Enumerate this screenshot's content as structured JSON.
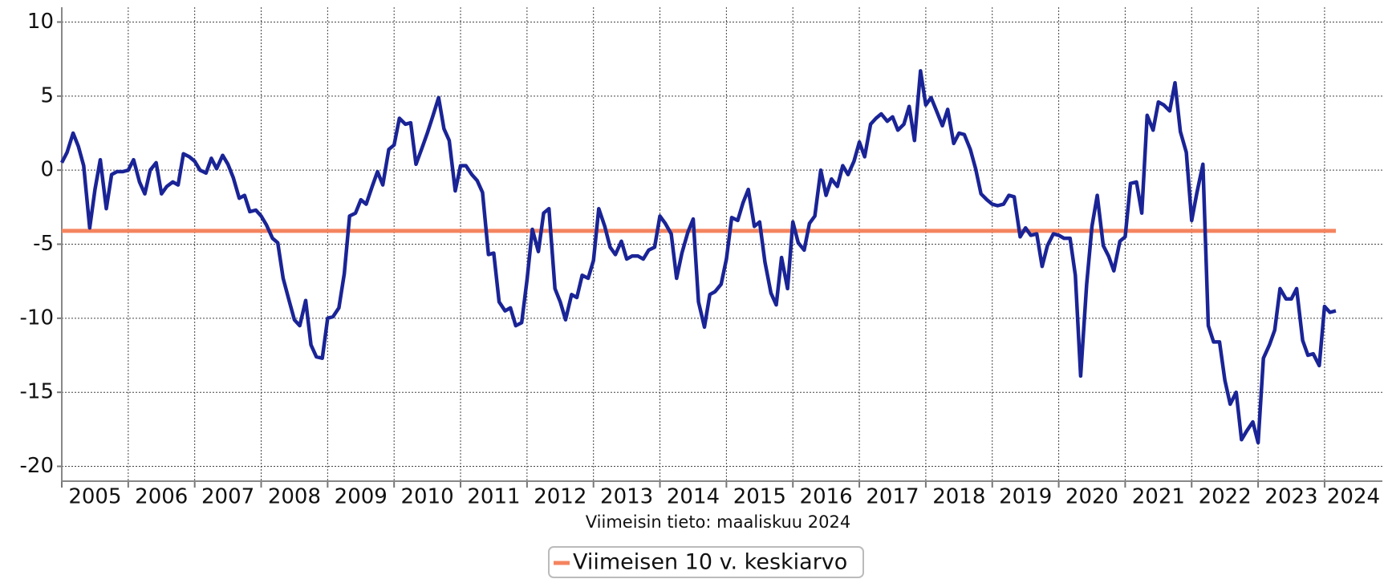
{
  "chart_data": {
    "type": "line",
    "note": "Viimeisin tieto: maaliskuu 2024",
    "x": [
      2005,
      2005.08,
      2005.17,
      2005.25,
      2005.33,
      2005.42,
      2005.5,
      2005.58,
      2005.67,
      2005.75,
      2005.83,
      2005.92,
      2006,
      2006.08,
      2006.17,
      2006.25,
      2006.33,
      2006.42,
      2006.5,
      2006.58,
      2006.67,
      2006.75,
      2006.83,
      2006.92,
      2007,
      2007.08,
      2007.17,
      2007.25,
      2007.33,
      2007.42,
      2007.5,
      2007.58,
      2007.67,
      2007.75,
      2007.83,
      2007.92,
      2008,
      2008.08,
      2008.17,
      2008.25,
      2008.33,
      2008.42,
      2008.5,
      2008.58,
      2008.67,
      2008.75,
      2008.83,
      2008.92,
      2009,
      2009.08,
      2009.17,
      2009.25,
      2009.33,
      2009.42,
      2009.5,
      2009.58,
      2009.67,
      2009.75,
      2009.83,
      2009.92,
      2010,
      2010.08,
      2010.17,
      2010.25,
      2010.33,
      2010.42,
      2010.5,
      2010.58,
      2010.67,
      2010.75,
      2010.83,
      2010.92,
      2011,
      2011.08,
      2011.17,
      2011.25,
      2011.33,
      2011.42,
      2011.5,
      2011.58,
      2011.67,
      2011.75,
      2011.83,
      2011.92,
      2012,
      2012.08,
      2012.17,
      2012.25,
      2012.33,
      2012.42,
      2012.5,
      2012.58,
      2012.67,
      2012.75,
      2012.83,
      2012.92,
      2013,
      2013.08,
      2013.17,
      2013.25,
      2013.33,
      2013.42,
      2013.5,
      2013.58,
      2013.67,
      2013.75,
      2013.83,
      2013.92,
      2014,
      2014.08,
      2014.17,
      2014.25,
      2014.33,
      2014.42,
      2014.5,
      2014.58,
      2014.67,
      2014.75,
      2014.83,
      2014.92,
      2015,
      2015.08,
      2015.17,
      2015.25,
      2015.33,
      2015.42,
      2015.5,
      2015.58,
      2015.67,
      2015.75,
      2015.83,
      2015.92,
      2016,
      2016.08,
      2016.17,
      2016.25,
      2016.33,
      2016.42,
      2016.5,
      2016.58,
      2016.67,
      2016.75,
      2016.83,
      2016.92,
      2017,
      2017.08,
      2017.17,
      2017.25,
      2017.33,
      2017.42,
      2017.5,
      2017.58,
      2017.67,
      2017.75,
      2017.83,
      2017.92,
      2018,
      2018.08,
      2018.17,
      2018.25,
      2018.33,
      2018.42,
      2018.5,
      2018.58,
      2018.67,
      2018.75,
      2018.83,
      2018.92,
      2019,
      2019.08,
      2019.17,
      2019.25,
      2019.33,
      2019.42,
      2019.5,
      2019.58,
      2019.67,
      2019.75,
      2019.83,
      2019.92,
      2020,
      2020.08,
      2020.17,
      2020.25,
      2020.33,
      2020.42,
      2020.5,
      2020.58,
      2020.67,
      2020.75,
      2020.83,
      2020.92,
      2021,
      2021.08,
      2021.17,
      2021.25,
      2021.33,
      2021.42,
      2021.5,
      2021.58,
      2021.67,
      2021.75,
      2021.83,
      2021.92,
      2022,
      2022.08,
      2022.17,
      2022.25,
      2022.33,
      2022.42,
      2022.5,
      2022.58,
      2022.67,
      2022.75,
      2022.83,
      2022.92,
      2023,
      2023.08,
      2023.17,
      2023.25,
      2023.33,
      2023.42,
      2023.5,
      2023.58,
      2023.67,
      2023.75,
      2023.83,
      2023.92,
      2024,
      2024.08,
      2024.17
    ],
    "series": [
      {
        "color": "#1a2496",
        "values": [
          0.5,
          1.2,
          2.5,
          1.6,
          0.3,
          -3.9,
          -1.3,
          0.7,
          -2.6,
          -0.3,
          -0.1,
          -0.1,
          0,
          0.7,
          -0.8,
          -1.6,
          0,
          0.5,
          -1.6,
          -1.1,
          -0.8,
          -1,
          1.1,
          0.9,
          0.6,
          0,
          -0.2,
          0.8,
          0.1,
          1,
          0.4,
          -0.5,
          -1.9,
          -1.7,
          -2.8,
          -2.7,
          -3.1,
          -3.7,
          -4.6,
          -4.9,
          -7.3,
          -8.8,
          -10.1,
          -10.5,
          -8.8,
          -11.8,
          -12.6,
          -12.7,
          -10,
          -9.9,
          -9.3,
          -7,
          -3.1,
          -2.9,
          -2,
          -2.3,
          -1.1,
          -0.1,
          -1,
          1.4,
          1.7,
          3.5,
          3.1,
          3.2,
          0.4,
          1.5,
          2.5,
          3.6,
          4.9,
          2.8,
          2,
          -1.4,
          0.3,
          0.3,
          -0.3,
          -0.7,
          -1.5,
          -5.7,
          -5.6,
          -8.9,
          -9.5,
          -9.3,
          -10.5,
          -10.3,
          -7.4,
          -4,
          -5.5,
          -2.9,
          -2.6,
          -8,
          -8.9,
          -10.1,
          -8.4,
          -8.6,
          -7.1,
          -7.3,
          -6.1,
          -2.6,
          -3.8,
          -5.2,
          -5.7,
          -4.8,
          -6,
          -5.8,
          -5.8,
          -6,
          -5.4,
          -5.2,
          -3.1,
          -3.6,
          -4.3,
          -7.3,
          -5.6,
          -4.2,
          -3.3,
          -8.9,
          -10.6,
          -8.4,
          -8.2,
          -7.7,
          -6,
          -3.2,
          -3.4,
          -2.2,
          -1.3,
          -3.8,
          -3.5,
          -6.2,
          -8.3,
          -9.1,
          -5.9,
          -8,
          -3.5,
          -4.9,
          -5.4,
          -3.6,
          -3.1,
          0,
          -1.7,
          -0.6,
          -1.1,
          0.3,
          -0.3,
          0.6,
          1.9,
          0.9,
          3.1,
          3.5,
          3.8,
          3.3,
          3.6,
          2.7,
          3.1,
          4.3,
          2,
          6.7,
          4.4,
          4.9,
          3.9,
          3,
          4.1,
          1.8,
          2.5,
          2.4,
          1.4,
          0.1,
          -1.6,
          -2,
          -2.3,
          -2.4,
          -2.3,
          -1.7,
          -1.8,
          -4.5,
          -3.9,
          -4.4,
          -4.3,
          -6.5,
          -5.1,
          -4.3,
          -4.4,
          -4.6,
          -4.6,
          -7.1,
          -13.9,
          -7.7,
          -3.8,
          -1.7,
          -5.1,
          -5.8,
          -6.8,
          -4.8,
          -4.5,
          -0.9,
          -0.8,
          -2.9,
          3.7,
          2.7,
          4.6,
          4.4,
          4,
          5.9,
          2.6,
          1.2,
          -3.4,
          -1.5,
          0.4,
          -10.5,
          -11.6,
          -11.6,
          -14.2,
          -15.8,
          -15,
          -18.2,
          -17.6,
          -17,
          -18.4,
          -12.7,
          -11.8,
          -10.8,
          -8,
          -8.7,
          -8.7,
          -8,
          -11.5,
          -12.5,
          -12.4,
          -13.2,
          -9.2,
          -9.6,
          -9.5
        ]
      }
    ],
    "reference_line": {
      "name": "Viimeisen 10 v. keskiarvo",
      "value": -4.1,
      "color": "#f4845f"
    },
    "xlim": [
      2005,
      2024.87
    ],
    "xticks": [
      2005,
      2006,
      2007,
      2008,
      2009,
      2010,
      2011,
      2012,
      2013,
      2014,
      2015,
      2016,
      2017,
      2018,
      2019,
      2020,
      2021,
      2022,
      2023,
      2024
    ],
    "ylim": [
      -21,
      11
    ],
    "yticks": [
      -20,
      -15,
      -10,
      -5,
      0,
      5,
      10
    ],
    "grid": true,
    "legend": "bottom"
  }
}
